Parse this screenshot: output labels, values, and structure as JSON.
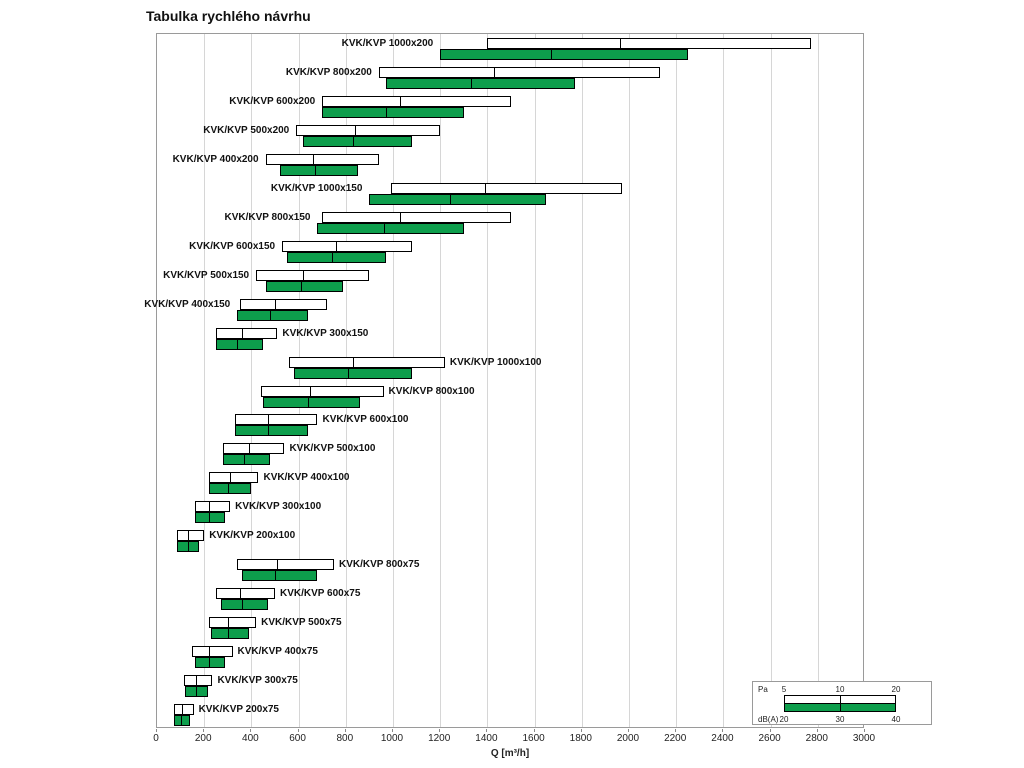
{
  "chart_data": {
    "type": "bar",
    "orientation": "horizontal",
    "title": "Tabulka rychlého návrhu",
    "xlabel": "Q [m³/h]",
    "xlim": [
      0,
      3000
    ],
    "xticks": [
      0,
      200,
      400,
      600,
      800,
      1000,
      1200,
      1400,
      1600,
      1800,
      2000,
      2200,
      2400,
      2600,
      2800,
      3000
    ],
    "grid": "vertical",
    "colors": {
      "pa_fill": "#ffffff",
      "dba_fill": "#0d9e4c",
      "bar_border": "#000000",
      "grid": "#d6d6d6",
      "plot_border": "#9a9a9a"
    },
    "legend": {
      "position": "bottom-right",
      "pa_label": "Pa",
      "pa_ticks": [
        "5",
        "10",
        "20"
      ],
      "dba_label": "dB(A)",
      "dba_ticks": [
        "20",
        "30",
        "40"
      ]
    },
    "rows": [
      {
        "label": "KVK/KVP 1000x200",
        "label_side": "left",
        "pa": [
          1400,
          1960,
          2770
        ],
        "dba": [
          1200,
          1670,
          2250
        ]
      },
      {
        "label": "KVK/KVP 800x200",
        "label_side": "left",
        "pa": [
          940,
          1430,
          2130
        ],
        "dba": [
          970,
          1330,
          1770
        ]
      },
      {
        "label": "KVK/KVP 600x200",
        "label_side": "left",
        "pa": [
          700,
          1030,
          1500
        ],
        "dba": [
          700,
          970,
          1300
        ]
      },
      {
        "label": "KVK/KVP 500x200",
        "label_side": "left",
        "pa": [
          590,
          840,
          1200
        ],
        "dba": [
          620,
          830,
          1080
        ]
      },
      {
        "label": "KVK/KVP 400x200",
        "label_side": "left",
        "pa": [
          460,
          660,
          940
        ],
        "dba": [
          520,
          670,
          850
        ]
      },
      {
        "label": "KVK/KVP 1000x150",
        "label_side": "left",
        "pa": [
          990,
          1390,
          1970
        ],
        "dba": [
          900,
          1240,
          1650
        ]
      },
      {
        "label": "KVK/KVP 800x150",
        "label_side": "left",
        "pa": [
          700,
          1030,
          1500
        ],
        "dba": [
          680,
          960,
          1300
        ]
      },
      {
        "label": "KVK/KVP 600x150",
        "label_side": "left",
        "pa": [
          530,
          760,
          1080
        ],
        "dba": [
          550,
          740,
          970
        ]
      },
      {
        "label": "KVK/KVP 500x150",
        "label_side": "left",
        "pa": [
          420,
          620,
          900
        ],
        "dba": [
          460,
          610,
          790
        ]
      },
      {
        "label": "KVK/KVP 400x150",
        "label_side": "left",
        "pa": [
          350,
          500,
          720
        ],
        "dba": [
          340,
          480,
          640
        ]
      },
      {
        "label": "KVK/KVP 300x150",
        "label_side": "right",
        "pa": [
          250,
          360,
          510
        ],
        "dba": [
          250,
          340,
          450
        ]
      },
      {
        "label": "KVK/KVP 1000x100",
        "label_side": "right",
        "pa": [
          560,
          830,
          1220
        ],
        "dba": [
          580,
          810,
          1080
        ]
      },
      {
        "label": "KVK/KVP 800x100",
        "label_side": "right",
        "pa": [
          440,
          650,
          960
        ],
        "dba": [
          450,
          640,
          860
        ]
      },
      {
        "label": "KVK/KVP 600x100",
        "label_side": "right",
        "pa": [
          330,
          470,
          680
        ],
        "dba": [
          330,
          470,
          640
        ]
      },
      {
        "label": "KVK/KVP 500x100",
        "label_side": "right",
        "pa": [
          280,
          390,
          540
        ],
        "dba": [
          280,
          370,
          480
        ]
      },
      {
        "label": "KVK/KVP 400x100",
        "label_side": "right",
        "pa": [
          220,
          310,
          430
        ],
        "dba": [
          220,
          300,
          400
        ]
      },
      {
        "label": "KVK/KVP 300x100",
        "label_side": "right",
        "pa": [
          160,
          220,
          310
        ],
        "dba": [
          160,
          220,
          290
        ]
      },
      {
        "label": "KVK/KVP 200x100",
        "label_side": "right",
        "pa": [
          85,
          130,
          200
        ],
        "dba": [
          85,
          130,
          180
        ]
      },
      {
        "label": "KVK/KVP 800x75",
        "label_side": "right",
        "pa": [
          340,
          510,
          750
        ],
        "dba": [
          360,
          500,
          680
        ]
      },
      {
        "label": "KVK/KVP 600x75",
        "label_side": "right",
        "pa": [
          250,
          350,
          500
        ],
        "dba": [
          270,
          360,
          470
        ]
      },
      {
        "label": "KVK/KVP 500x75",
        "label_side": "right",
        "pa": [
          220,
          300,
          420
        ],
        "dba": [
          230,
          300,
          390
        ]
      },
      {
        "label": "KVK/KVP 400x75",
        "label_side": "right",
        "pa": [
          150,
          220,
          320
        ],
        "dba": [
          160,
          220,
          290
        ]
      },
      {
        "label": "KVK/KVP 300x75",
        "label_side": "right",
        "pa": [
          115,
          165,
          235
        ],
        "dba": [
          120,
          165,
          215
        ]
      },
      {
        "label": "KVK/KVP 200x75",
        "label_side": "right",
        "pa": [
          70,
          105,
          155
        ],
        "dba": [
          70,
          100,
          140
        ]
      }
    ]
  }
}
